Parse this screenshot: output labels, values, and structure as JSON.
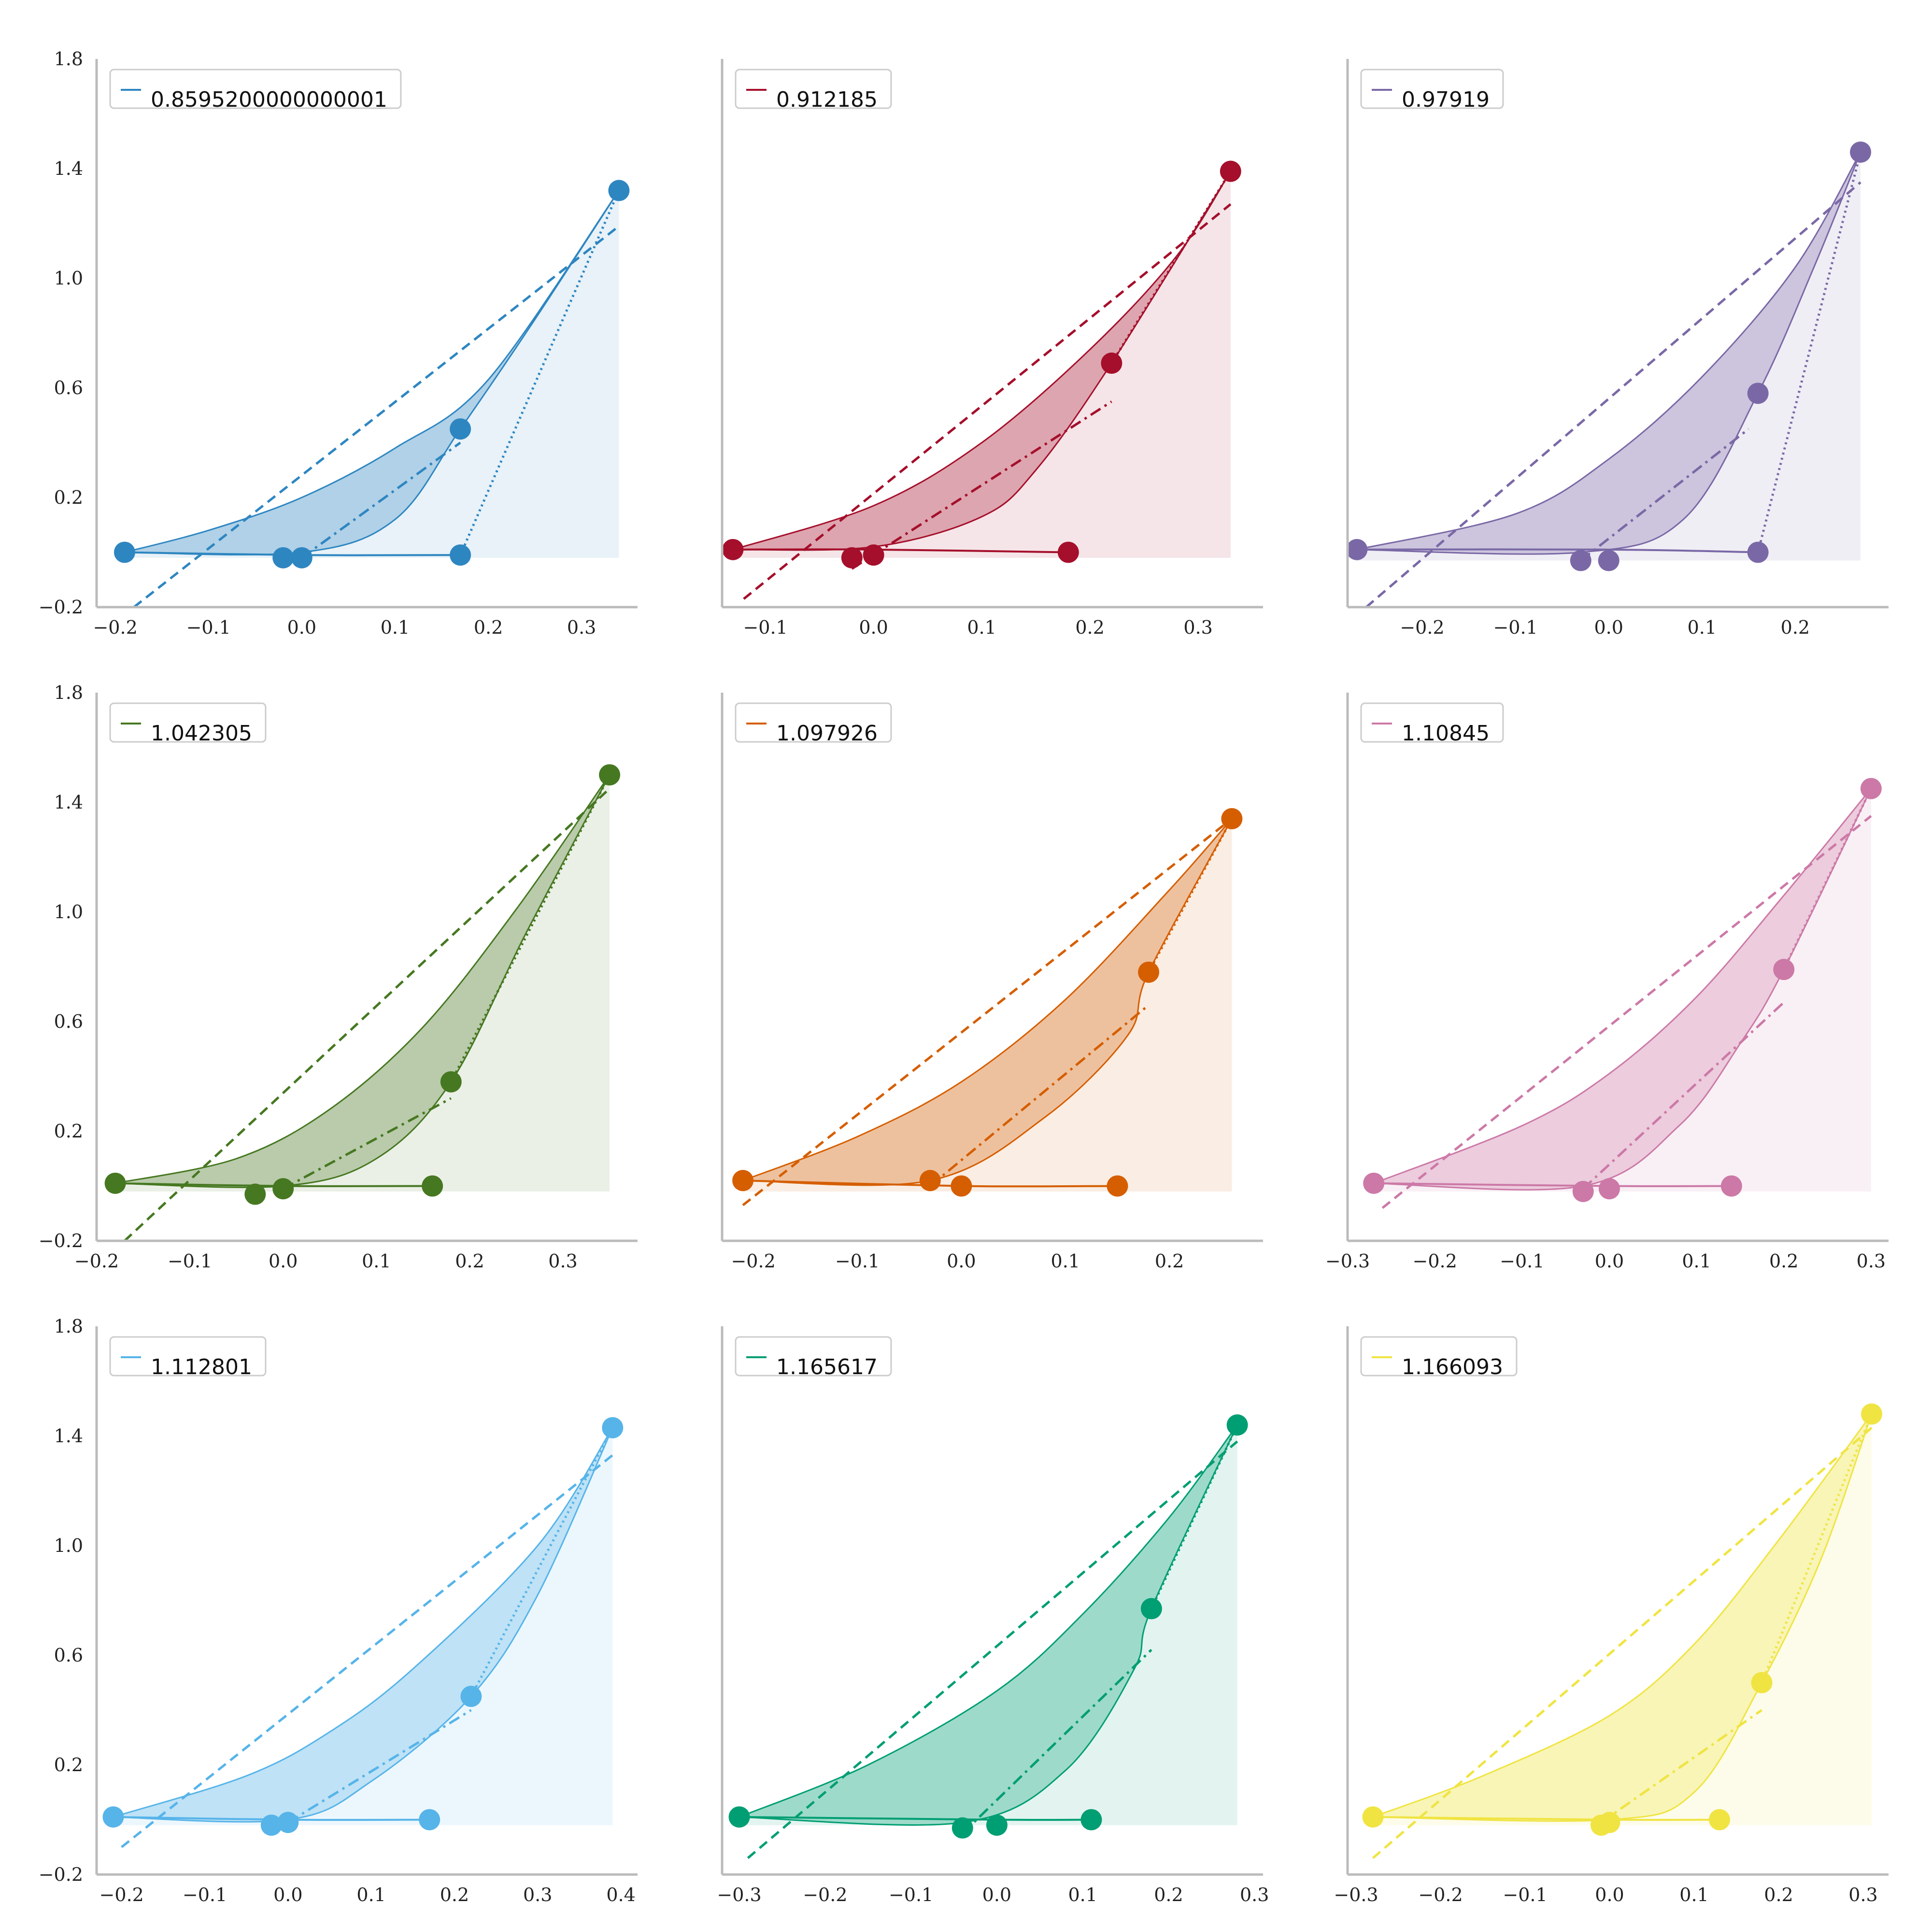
{
  "figure": {
    "layout": "3x3 grid of small-multiple line/area plots"
  },
  "chart_data": [
    {
      "type": "line",
      "legend": "0.8595200000000001",
      "legend_placement": "top-left",
      "color": "#2e86c1",
      "grid": false,
      "xlim": [
        -0.22,
        0.36
      ],
      "ylim": [
        -0.2,
        1.8
      ],
      "xticks": [
        -0.2,
        -0.1,
        0.0,
        0.1,
        0.2,
        0.3
      ],
      "xtick_labels": [
        "−0.2",
        "−0.1",
        "0.0",
        "0.1",
        "0.2",
        "0.3"
      ],
      "yticks": [
        -0.2,
        0.2,
        0.6,
        1.0,
        1.4,
        1.8
      ],
      "ytick_labels": [
        "−0.2",
        "0.2",
        "0.6",
        "1.0",
        "1.4",
        "1.8"
      ],
      "markers": {
        "x": [
          -0.19,
          -0.02,
          0.0,
          0.17,
          0.17,
          0.34
        ],
        "y": [
          0.0,
          -0.02,
          -0.02,
          0.45,
          -0.01,
          1.32
        ]
      },
      "dashed_line": {
        "x": [
          -0.18,
          0.34
        ],
        "y": [
          -0.2,
          1.19
        ]
      },
      "dashdot_line": {
        "x": [
          0.0,
          0.17
        ],
        "y": [
          -0.02,
          0.4
        ]
      },
      "upper_curve": {
        "x": [
          -0.19,
          -0.1,
          0.0,
          0.1,
          0.2,
          0.34
        ],
        "y": [
          0.0,
          0.08,
          0.2,
          0.38,
          0.63,
          1.32
        ]
      },
      "lower_curve": {
        "x": [
          -0.19,
          0.0,
          0.1,
          0.17,
          0.25,
          0.34
        ],
        "y": [
          0.0,
          0.0,
          0.12,
          0.45,
          0.85,
          1.32
        ]
      },
      "baseline": {
        "x": [
          -0.19,
          0.0,
          0.17
        ],
        "y": [
          0.0,
          -0.01,
          -0.01
        ]
      },
      "fill_light": {
        "x_range": [
          -0.19,
          0.34
        ],
        "base": -0.02
      }
    },
    {
      "type": "line",
      "legend": "0.912185",
      "legend_placement": "top-left",
      "color": "#a50f2b",
      "grid": false,
      "xlim": [
        -0.14,
        0.36
      ],
      "ylim": [
        -0.2,
        1.8
      ],
      "xticks": [
        -0.1,
        0.0,
        0.1,
        0.2,
        0.3
      ],
      "xtick_labels": [
        "−0.1",
        "0.0",
        "0.1",
        "0.2",
        "0.3"
      ],
      "yticks": [],
      "ytick_labels": [],
      "markers": {
        "x": [
          -0.13,
          -0.02,
          0.0,
          0.18,
          0.22,
          0.33
        ],
        "y": [
          0.01,
          -0.02,
          -0.01,
          0.0,
          0.69,
          1.39
        ]
      },
      "dashed_line": {
        "x": [
          -0.12,
          0.33
        ],
        "y": [
          -0.17,
          1.27
        ]
      },
      "dashdot_line": {
        "x": [
          -0.02,
          0.22
        ],
        "y": [
          -0.06,
          0.55
        ]
      },
      "upper_curve": {
        "x": [
          -0.13,
          0.0,
          0.1,
          0.2,
          0.28,
          0.33
        ],
        "y": [
          0.01,
          0.17,
          0.4,
          0.74,
          1.08,
          1.39
        ]
      },
      "lower_curve": {
        "x": [
          -0.13,
          0.0,
          0.1,
          0.15,
          0.22,
          0.33
        ],
        "y": [
          0.01,
          0.02,
          0.13,
          0.3,
          0.69,
          1.39
        ]
      },
      "baseline": {
        "x": [
          -0.13,
          0.0,
          0.18
        ],
        "y": [
          0.01,
          0.01,
          0.0
        ]
      },
      "fill_light": {
        "x_range": [
          -0.13,
          0.33
        ],
        "base": -0.02
      }
    },
    {
      "type": "line",
      "legend": "0.97919",
      "legend_placement": "top-left",
      "color": "#7a68a6",
      "grid": false,
      "xlim": [
        -0.28,
        0.3
      ],
      "ylim": [
        -0.2,
        1.8
      ],
      "xticks": [
        -0.2,
        -0.1,
        0.0,
        0.1,
        0.2
      ],
      "xtick_labels": [
        "−0.2",
        "−0.1",
        "0.0",
        "0.1",
        "0.2"
      ],
      "yticks": [],
      "ytick_labels": [],
      "markers": {
        "x": [
          -0.27,
          -0.03,
          0.0,
          0.16,
          0.16,
          0.27
        ],
        "y": [
          0.01,
          -0.03,
          -0.03,
          0.58,
          0.0,
          1.46
        ]
      },
      "dashed_line": {
        "x": [
          -0.26,
          0.27
        ],
        "y": [
          -0.2,
          1.35
        ]
      },
      "dashdot_line": {
        "x": [
          -0.03,
          0.15
        ],
        "y": [
          -0.03,
          0.45
        ]
      },
      "upper_curve": {
        "x": [
          -0.27,
          -0.1,
          0.0,
          0.1,
          0.2,
          0.27
        ],
        "y": [
          0.01,
          0.14,
          0.34,
          0.64,
          1.04,
          1.46
        ]
      },
      "lower_curve": {
        "x": [
          -0.27,
          -0.03,
          0.08,
          0.16,
          0.22,
          0.27
        ],
        "y": [
          0.01,
          0.0,
          0.12,
          0.58,
          1.04,
          1.46
        ]
      },
      "baseline": {
        "x": [
          -0.27,
          0.0,
          0.16
        ],
        "y": [
          0.01,
          0.01,
          0.0
        ]
      },
      "fill_light": {
        "x_range": [
          -0.27,
          0.27
        ],
        "base": -0.03
      }
    },
    {
      "type": "line",
      "legend": "1.042305",
      "legend_placement": "top-left",
      "color": "#467821",
      "grid": false,
      "xlim": [
        -0.2,
        0.38
      ],
      "ylim": [
        -0.2,
        1.8
      ],
      "xticks": [
        -0.2,
        -0.1,
        0.0,
        0.1,
        0.2,
        0.3
      ],
      "xtick_labels": [
        "−0.2",
        "−0.1",
        "0.0",
        "0.1",
        "0.2",
        "0.3"
      ],
      "yticks": [
        -0.2,
        0.2,
        0.6,
        1.0,
        1.4,
        1.8
      ],
      "ytick_labels": [
        "−0.2",
        "0.2",
        "0.6",
        "1.0",
        "1.4",
        "1.8"
      ],
      "markers": {
        "x": [
          -0.18,
          -0.03,
          0.0,
          0.16,
          0.18,
          0.35
        ],
        "y": [
          0.01,
          -0.03,
          -0.01,
          0.0,
          0.38,
          1.5
        ]
      },
      "dashed_line": {
        "x": [
          -0.17,
          0.35
        ],
        "y": [
          -0.2,
          1.45
        ]
      },
      "dashdot_line": {
        "x": [
          0.0,
          0.18
        ],
        "y": [
          -0.01,
          0.32
        ]
      },
      "upper_curve": {
        "x": [
          -0.18,
          -0.05,
          0.05,
          0.15,
          0.25,
          0.35
        ],
        "y": [
          0.01,
          0.1,
          0.28,
          0.58,
          1.01,
          1.5
        ]
      },
      "lower_curve": {
        "x": [
          -0.18,
          0.0,
          0.1,
          0.18,
          0.26,
          0.35
        ],
        "y": [
          0.01,
          0.0,
          0.1,
          0.38,
          0.92,
          1.5
        ]
      },
      "baseline": {
        "x": [
          -0.18,
          0.0,
          0.16
        ],
        "y": [
          0.01,
          0.0,
          0.0
        ]
      },
      "fill_light": {
        "x_range": [
          -0.18,
          0.35
        ],
        "base": -0.02
      }
    },
    {
      "type": "line",
      "legend": "1.097926",
      "legend_placement": "top-left",
      "color": "#d55e00",
      "grid": false,
      "xlim": [
        -0.23,
        0.29
      ],
      "ylim": [
        -0.2,
        1.8
      ],
      "xticks": [
        -0.2,
        -0.1,
        0.0,
        0.1,
        0.2
      ],
      "xtick_labels": [
        "−0.2",
        "−0.1",
        "0.0",
        "0.1",
        "0.2"
      ],
      "yticks": [],
      "ytick_labels": [],
      "markers": {
        "x": [
          -0.21,
          -0.03,
          0.0,
          0.15,
          0.18,
          0.26
        ],
        "y": [
          0.02,
          0.02,
          0.0,
          0.0,
          0.78,
          1.34
        ]
      },
      "dashed_line": {
        "x": [
          -0.21,
          0.26
        ],
        "y": [
          -0.07,
          1.34
        ]
      },
      "dashdot_line": {
        "x": [
          -0.03,
          0.18
        ],
        "y": [
          -0.0,
          0.66
        ]
      },
      "upper_curve": {
        "x": [
          -0.21,
          -0.1,
          0.0,
          0.1,
          0.2,
          0.26
        ],
        "y": [
          0.02,
          0.18,
          0.38,
          0.68,
          1.08,
          1.34
        ]
      },
      "lower_curve": {
        "x": [
          -0.21,
          -0.03,
          0.08,
          0.16,
          0.18,
          0.26
        ],
        "y": [
          0.02,
          0.02,
          0.25,
          0.55,
          0.78,
          1.34
        ]
      },
      "baseline": {
        "x": [
          -0.21,
          0.0,
          0.15
        ],
        "y": [
          0.02,
          0.0,
          0.0
        ]
      },
      "fill_light": {
        "x_range": [
          -0.21,
          0.26
        ],
        "base": -0.02
      }
    },
    {
      "type": "line",
      "legend": "1.10845",
      "legend_placement": "top-left",
      "color": "#cc79a7",
      "grid": false,
      "xlim": [
        -0.3,
        0.32
      ],
      "ylim": [
        -0.2,
        1.8
      ],
      "xticks": [
        -0.3,
        -0.2,
        -0.1,
        0.0,
        0.1,
        0.2,
        0.3
      ],
      "xtick_labels": [
        "−0.3",
        "−0.2",
        "−0.1",
        "0.0",
        "0.1",
        "0.2",
        "0.3"
      ],
      "yticks": [],
      "ytick_labels": [],
      "markers": {
        "x": [
          -0.27,
          -0.03,
          0.0,
          0.14,
          0.2,
          0.3
        ],
        "y": [
          0.01,
          -0.02,
          -0.01,
          0.0,
          0.79,
          1.45
        ]
      },
      "dashed_line": {
        "x": [
          -0.26,
          0.3
        ],
        "y": [
          -0.08,
          1.35
        ]
      },
      "dashdot_line": {
        "x": [
          -0.03,
          0.2
        ],
        "y": [
          -0.01,
          0.67
        ]
      },
      "upper_curve": {
        "x": [
          -0.27,
          -0.1,
          0.0,
          0.1,
          0.2,
          0.3
        ],
        "y": [
          0.01,
          0.22,
          0.41,
          0.69,
          1.06,
          1.45
        ]
      },
      "lower_curve": {
        "x": [
          -0.27,
          -0.03,
          0.08,
          0.15,
          0.2,
          0.3
        ],
        "y": [
          0.01,
          0.0,
          0.22,
          0.52,
          0.79,
          1.45
        ]
      },
      "baseline": {
        "x": [
          -0.27,
          0.0,
          0.14
        ],
        "y": [
          0.01,
          0.0,
          0.0
        ]
      },
      "fill_light": {
        "x_range": [
          -0.27,
          0.3
        ],
        "base": -0.02
      }
    },
    {
      "type": "line",
      "legend": "1.112801",
      "legend_placement": "top-left",
      "color": "#56b4e9",
      "grid": false,
      "xlim": [
        -0.23,
        0.42
      ],
      "ylim": [
        -0.2,
        1.8
      ],
      "xticks": [
        -0.2,
        -0.1,
        0.0,
        0.1,
        0.2,
        0.3,
        0.4
      ],
      "xtick_labels": [
        "−0.2",
        "−0.1",
        "0.0",
        "0.1",
        "0.2",
        "0.3",
        "0.4"
      ],
      "yticks": [
        -0.2,
        0.2,
        0.6,
        1.0,
        1.4,
        1.8
      ],
      "ytick_labels": [
        "−0.2",
        "0.2",
        "0.6",
        "1.0",
        "1.4",
        "1.8"
      ],
      "markers": {
        "x": [
          -0.21,
          -0.02,
          0.0,
          0.17,
          0.22,
          0.39
        ],
        "y": [
          0.01,
          -0.02,
          -0.01,
          0.0,
          0.45,
          1.43
        ]
      },
      "dashed_line": {
        "x": [
          -0.2,
          0.39
        ],
        "y": [
          -0.1,
          1.33
        ]
      },
      "dashdot_line": {
        "x": [
          0.0,
          0.22
        ],
        "y": [
          -0.01,
          0.4
        ]
      },
      "upper_curve": {
        "x": [
          -0.21,
          -0.05,
          0.05,
          0.15,
          0.3,
          0.39
        ],
        "y": [
          0.01,
          0.16,
          0.32,
          0.55,
          1.0,
          1.43
        ]
      },
      "lower_curve": {
        "x": [
          -0.21,
          0.0,
          0.1,
          0.22,
          0.3,
          0.39
        ],
        "y": [
          0.01,
          0.0,
          0.14,
          0.45,
          0.82,
          1.43
        ]
      },
      "baseline": {
        "x": [
          -0.21,
          0.0,
          0.17
        ],
        "y": [
          0.01,
          0.0,
          0.0
        ]
      },
      "fill_light": {
        "x_range": [
          -0.21,
          0.39
        ],
        "base": -0.02
      }
    },
    {
      "type": "line",
      "legend": "1.165617",
      "legend_placement": "top-left",
      "color": "#009e73",
      "grid": false,
      "xlim": [
        -0.32,
        0.31
      ],
      "ylim": [
        -0.2,
        1.8
      ],
      "xticks": [
        -0.3,
        -0.2,
        -0.1,
        0.0,
        0.1,
        0.2,
        0.3
      ],
      "xtick_labels": [
        "−0.3",
        "−0.2",
        "−0.1",
        "0.0",
        "0.1",
        "0.2",
        "0.3"
      ],
      "yticks": [],
      "ytick_labels": [],
      "markers": {
        "x": [
          -0.3,
          -0.04,
          0.0,
          0.11,
          0.18,
          0.28
        ],
        "y": [
          0.01,
          -0.03,
          -0.02,
          0.0,
          0.77,
          1.44
        ]
      },
      "dashed_line": {
        "x": [
          -0.29,
          0.28
        ],
        "y": [
          -0.14,
          1.38
        ]
      },
      "dashdot_line": {
        "x": [
          -0.04,
          0.18
        ],
        "y": [
          -0.05,
          0.62
        ]
      },
      "upper_curve": {
        "x": [
          -0.3,
          -0.15,
          0.0,
          0.1,
          0.2,
          0.28
        ],
        "y": [
          0.01,
          0.2,
          0.47,
          0.75,
          1.1,
          1.44
        ]
      },
      "lower_curve": {
        "x": [
          -0.3,
          -0.04,
          0.08,
          0.16,
          0.18,
          0.28
        ],
        "y": [
          0.01,
          -0.01,
          0.18,
          0.55,
          0.77,
          1.44
        ]
      },
      "baseline": {
        "x": [
          -0.3,
          0.0,
          0.11
        ],
        "y": [
          0.01,
          0.0,
          0.0
        ]
      },
      "fill_light": {
        "x_range": [
          -0.3,
          0.28
        ],
        "base": -0.02
      }
    },
    {
      "type": "line",
      "legend": "1.166093",
      "legend_placement": "top-left",
      "color": "#f0e442",
      "grid": false,
      "xlim": [
        -0.31,
        0.33
      ],
      "ylim": [
        -0.2,
        1.8
      ],
      "xticks": [
        -0.3,
        -0.2,
        -0.1,
        0.0,
        0.1,
        0.2,
        0.3
      ],
      "xtick_labels": [
        "−0.3",
        "−0.2",
        "−0.1",
        "0.0",
        "0.1",
        "0.2",
        "0.3"
      ],
      "yticks": [],
      "ytick_labels": [],
      "markers": {
        "x": [
          -0.28,
          -0.01,
          0.0,
          0.13,
          0.18,
          0.31
        ],
        "y": [
          0.01,
          -0.02,
          -0.01,
          0.0,
          0.5,
          1.48
        ]
      },
      "dashed_line": {
        "x": [
          -0.28,
          0.31
        ],
        "y": [
          -0.14,
          1.43
        ]
      },
      "dashdot_line": {
        "x": [
          -0.01,
          0.18
        ],
        "y": [
          -0.01,
          0.4
        ]
      },
      "upper_curve": {
        "x": [
          -0.28,
          -0.15,
          0.0,
          0.1,
          0.2,
          0.31
        ],
        "y": [
          0.01,
          0.16,
          0.38,
          0.64,
          1.02,
          1.48
        ]
      },
      "lower_curve": {
        "x": [
          -0.28,
          0.0,
          0.1,
          0.18,
          0.25,
          0.31
        ],
        "y": [
          0.01,
          0.0,
          0.1,
          0.5,
          0.95,
          1.48
        ]
      },
      "baseline": {
        "x": [
          -0.28,
          0.0,
          0.13
        ],
        "y": [
          0.01,
          0.0,
          0.0
        ]
      },
      "fill_light": {
        "x_range": [
          -0.28,
          0.31
        ],
        "base": -0.02
      }
    }
  ]
}
